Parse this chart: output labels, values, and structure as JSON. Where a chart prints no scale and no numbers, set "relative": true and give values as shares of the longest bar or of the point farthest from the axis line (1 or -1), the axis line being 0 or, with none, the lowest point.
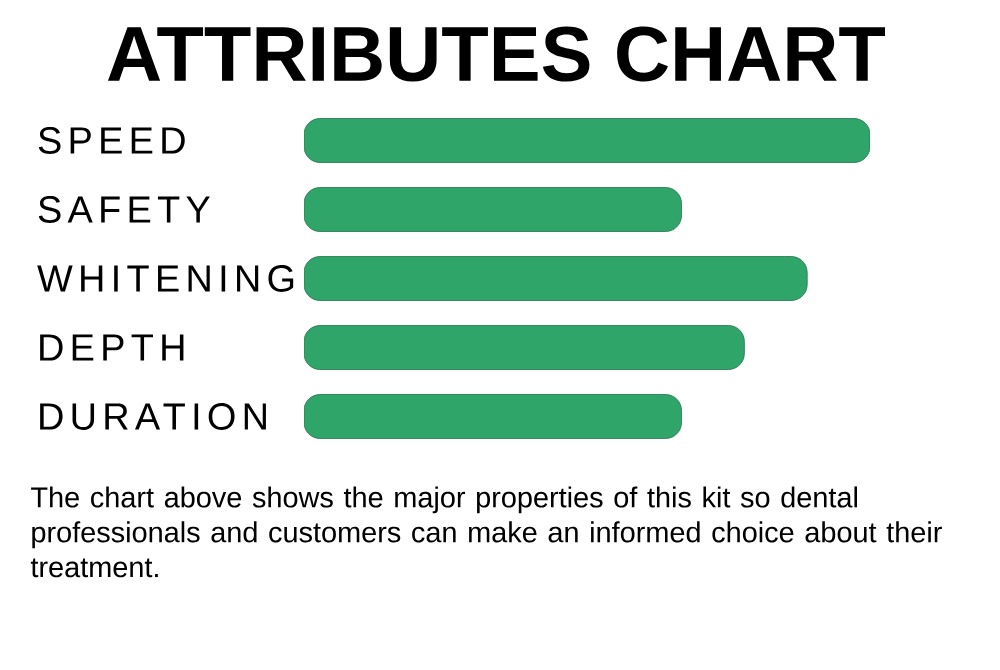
{
  "chart_data": {
    "type": "bar",
    "orientation": "horizontal",
    "relative": true,
    "title": "ATTRIBUTES CHART",
    "categories": [
      "SPEED",
      "SAFETY",
      "WHITENING",
      "DEPTH",
      "DURATION"
    ],
    "values": [
      1,
      0.667,
      0.889,
      0.778,
      0.667
    ],
    "color": "#2fa56a",
    "annotations": [
      "The chart above shows the major properties of this kit so dental professionals and customers can make an informed choice about their treatment."
    ]
  }
}
